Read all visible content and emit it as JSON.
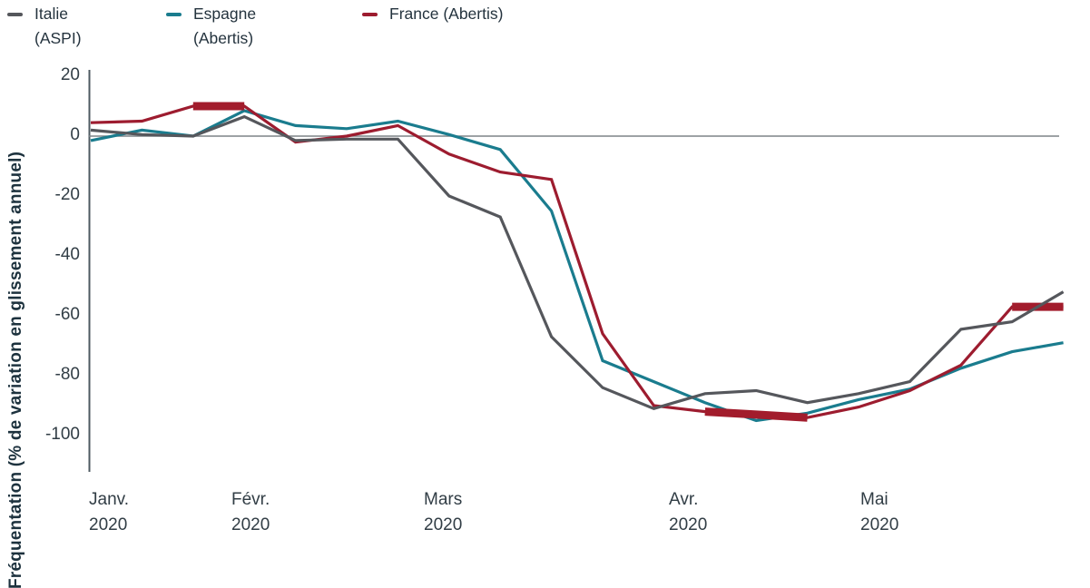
{
  "legend": {
    "items": [
      {
        "label": "Italie\n(ASPI)",
        "color": "#55575c"
      },
      {
        "label": "Espagne\n(Abertis)",
        "color": "#1a7c8e"
      },
      {
        "label": "France (Abertis)",
        "color": "#9d1c2f"
      }
    ]
  },
  "chart_data": {
    "type": "line",
    "title": "",
    "xlabel": "",
    "ylabel": "Fréquentation (% de variation en glissement annuel)",
    "ylim": [
      -100,
      20
    ],
    "yticks": [
      20,
      0,
      -20,
      -40,
      -60,
      -80,
      -100
    ],
    "x_unit": "weeks (Janv.–Mai 2020)",
    "x_tick_months": [
      {
        "name": "Janv.",
        "year": "2020"
      },
      {
        "name": "Févr.",
        "year": "2020"
      },
      {
        "name": "Mars",
        "year": "2020"
      },
      {
        "name": "Avr.",
        "year": "2020"
      },
      {
        "name": "Mai",
        "year": "2020"
      }
    ],
    "grid": "zero-line only",
    "legend_position": "top-left",
    "series": [
      {
        "name": "Italie (ASPI)",
        "color": "#55575c",
        "values": [
          2,
          0.5,
          0,
          6.5,
          -1.5,
          -1,
          -1,
          -20,
          -27,
          -67,
          -84,
          -91,
          -86,
          -85,
          -89,
          -86,
          -82,
          -64.5,
          -62,
          -52
        ]
      },
      {
        "name": "Espagne (Abertis)",
        "color": "#1a7c8e",
        "values": [
          -1.5,
          2,
          0,
          8.5,
          3.5,
          2.5,
          5,
          0.5,
          -4.5,
          -25,
          -75,
          -82,
          -89,
          -95,
          -92.5,
          -88,
          -84.5,
          -77.5,
          -72,
          -69
        ]
      },
      {
        "name": "France (Abertis)",
        "color": "#9d1c2f",
        "highlight_color": "#a21c2c",
        "highlight_segments": [
          [
            2,
            3
          ],
          [
            12,
            14
          ],
          [
            18,
            19
          ]
        ],
        "values": [
          4.5,
          5,
          10,
          10,
          -2,
          0,
          3.5,
          -6,
          -12,
          -14.5,
          -66,
          -90,
          -92,
          -93,
          -94,
          -90.5,
          -85,
          -76.5,
          -57,
          -57
        ]
      }
    ]
  }
}
